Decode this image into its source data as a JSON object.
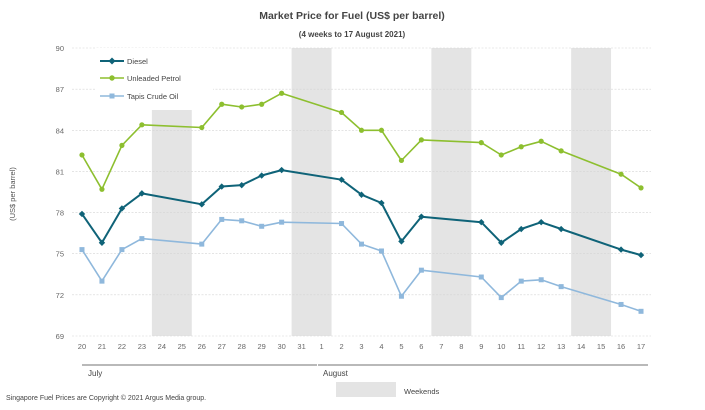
{
  "chart_data": {
    "type": "line",
    "title": "Market Price for Fuel  (US$  per barrel)",
    "subtitle": "(4 weeks to 17 August 2021)",
    "ylabel": "(US$ per barrel)",
    "ylim": [
      69,
      90
    ],
    "yticks": [
      69,
      72,
      75,
      78,
      81,
      84,
      87,
      90
    ],
    "x": [
      "20",
      "21",
      "22",
      "23",
      "24",
      "25",
      "26",
      "27",
      "28",
      "29",
      "30",
      "31",
      "1",
      "2",
      "3",
      "4",
      "5",
      "6",
      "7",
      "8",
      "9",
      "10",
      "11",
      "12",
      "13",
      "14",
      "15",
      "16",
      "17"
    ],
    "months": [
      {
        "label": "July",
        "start": "20",
        "end": "31"
      },
      {
        "label": "August",
        "start": "1",
        "end": "17"
      }
    ],
    "weekend_bands": [
      [
        "24",
        "25"
      ],
      [
        "31",
        "1"
      ],
      [
        "7",
        "8"
      ],
      [
        "14",
        "15"
      ]
    ],
    "weekend_legend_label": "Weekends",
    "series": [
      {
        "name": "Diesel",
        "color": "#0f6378",
        "marker": "diamond",
        "values": [
          77.9,
          75.8,
          78.3,
          79.4,
          null,
          null,
          78.6,
          79.9,
          80.0,
          80.7,
          81.1,
          null,
          null,
          80.4,
          79.3,
          78.7,
          75.9,
          77.7,
          null,
          null,
          77.3,
          75.8,
          76.8,
          77.3,
          76.8,
          null,
          null,
          75.3,
          74.9
        ],
        "gap_values": [
          [
            23,
            79.4
          ],
          [
            26,
            78.6
          ],
          [
            30,
            81.1
          ],
          [
            2,
            80.4
          ],
          [
            6,
            77.7
          ],
          [
            9,
            77.3
          ],
          [
            13,
            76.8
          ],
          [
            16,
            75.3
          ]
        ]
      },
      {
        "name": "Unleaded Petrol",
        "color": "#8dbf2f",
        "marker": "circle",
        "values": [
          82.2,
          79.7,
          82.9,
          84.4,
          null,
          null,
          84.2,
          85.9,
          85.7,
          85.9,
          86.7,
          null,
          null,
          85.3,
          84.0,
          84.0,
          81.8,
          83.3,
          null,
          null,
          83.1,
          82.2,
          82.8,
          83.2,
          82.5,
          null,
          null,
          80.8,
          79.8
        ]
      },
      {
        "name": "Tapis Crude Oil",
        "color": "#8fb8dc",
        "marker": "square",
        "values": [
          75.3,
          73.0,
          75.3,
          76.1,
          null,
          null,
          75.7,
          77.5,
          77.4,
          77.0,
          77.3,
          null,
          null,
          77.2,
          75.7,
          75.2,
          71.9,
          73.8,
          null,
          null,
          73.3,
          71.8,
          73.0,
          73.1,
          72.6,
          null,
          null,
          71.3,
          70.8
        ]
      }
    ],
    "legend_position": "top-left"
  },
  "footer": {
    "copyright": "Singapore  Fuel Prices are Copyright  © 2021  Argus Media group."
  }
}
